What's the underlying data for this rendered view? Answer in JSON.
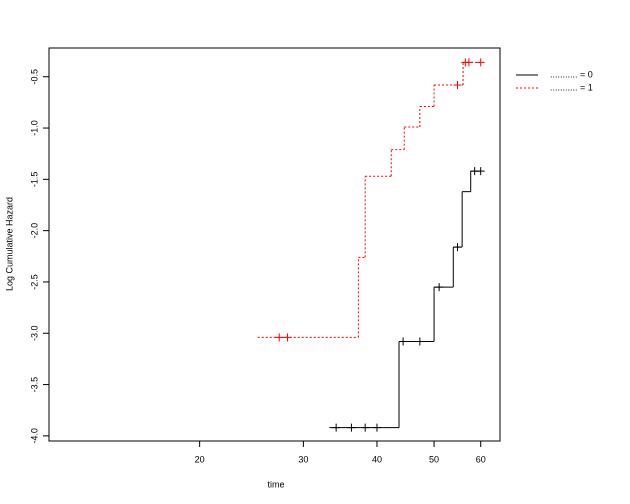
{
  "chart_data": {
    "type": "step",
    "x_label": "time",
    "y_label": "Log Cumulative Hazard",
    "x_log": true,
    "xlim": [
      11.1,
      64.7
    ],
    "ylim": [
      -4.05,
      -0.22
    ],
    "xticks": [
      20,
      30,
      40,
      50,
      60
    ],
    "yticks": [
      {
        "value": -4,
        "label": "-4.0"
      },
      -3.5,
      {
        "value": -3,
        "label": "-3.0"
      },
      -2.5,
      {
        "value": -2,
        "label": "-2.0"
      },
      -1.5,
      {
        "value": -1,
        "label": "-1.0"
      },
      -0.5
    ],
    "legend_position": "top-right-outside",
    "series": [
      {
        "name": "........... = 0",
        "color": "#000000",
        "dash": "solid",
        "x": [
          33.2,
          43.6,
          50,
          53.9,
          55.8,
          57.7,
          60
        ],
        "values": [
          -3.92,
          -3.08,
          -2.55,
          -2.16,
          -1.62,
          -1.42,
          -1.42
        ],
        "censor_x": [
          34.1,
          36.2,
          38.2,
          40,
          44.3,
          47.3,
          51,
          54.8,
          58.6,
          60
        ],
        "censor_values": [
          -3.92,
          -3.92,
          -3.92,
          -3.92,
          -3.08,
          -3.08,
          -2.55,
          -2.16,
          -1.42,
          -1.42
        ]
      },
      {
        "name": "........... = 1",
        "color": "#ff0000",
        "dash": "dotted",
        "x": [
          25.1,
          37.2,
          38.2,
          42.3,
          44.5,
          47.3,
          50,
          56,
          60
        ],
        "values": [
          -3.04,
          -2.26,
          -1.47,
          -1.21,
          -0.99,
          -0.79,
          -0.58,
          -0.36,
          -0.36
        ],
        "censor_x": [
          27.3,
          28.2,
          54.8,
          56.5,
          57.3,
          60
        ],
        "censor_values": [
          -3.04,
          -3.04,
          -0.58,
          -0.36,
          -0.36,
          -0.36
        ]
      }
    ]
  }
}
